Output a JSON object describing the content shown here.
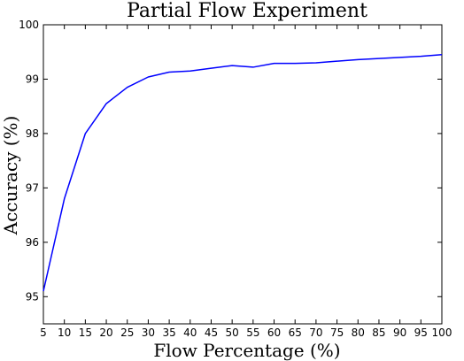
{
  "chart_data": {
    "type": "line",
    "title": "Partial Flow Experiment",
    "xlabel": "Flow Percentage (%)",
    "ylabel": "Accuracy (%)",
    "xlim": [
      5,
      100
    ],
    "ylim": [
      94.5,
      100
    ],
    "x_ticks": [
      5,
      10,
      15,
      20,
      25,
      30,
      35,
      40,
      45,
      50,
      55,
      60,
      65,
      70,
      75,
      80,
      85,
      90,
      95,
      100
    ],
    "y_ticks": [
      95,
      96,
      97,
      98,
      99,
      100
    ],
    "grid": false,
    "legend": "none",
    "series": [
      {
        "color": "#0000ff",
        "x": [
          5,
          10,
          15,
          20,
          25,
          30,
          35,
          40,
          45,
          50,
          55,
          60,
          65,
          70,
          75,
          80,
          85,
          90,
          95,
          100
        ],
        "y": [
          95.1,
          96.8,
          98.0,
          98.55,
          98.85,
          99.04,
          99.13,
          99.15,
          99.2,
          99.25,
          99.22,
          99.29,
          99.29,
          99.3,
          99.33,
          99.36,
          99.38,
          99.4,
          99.42,
          99.45
        ]
      }
    ]
  }
}
